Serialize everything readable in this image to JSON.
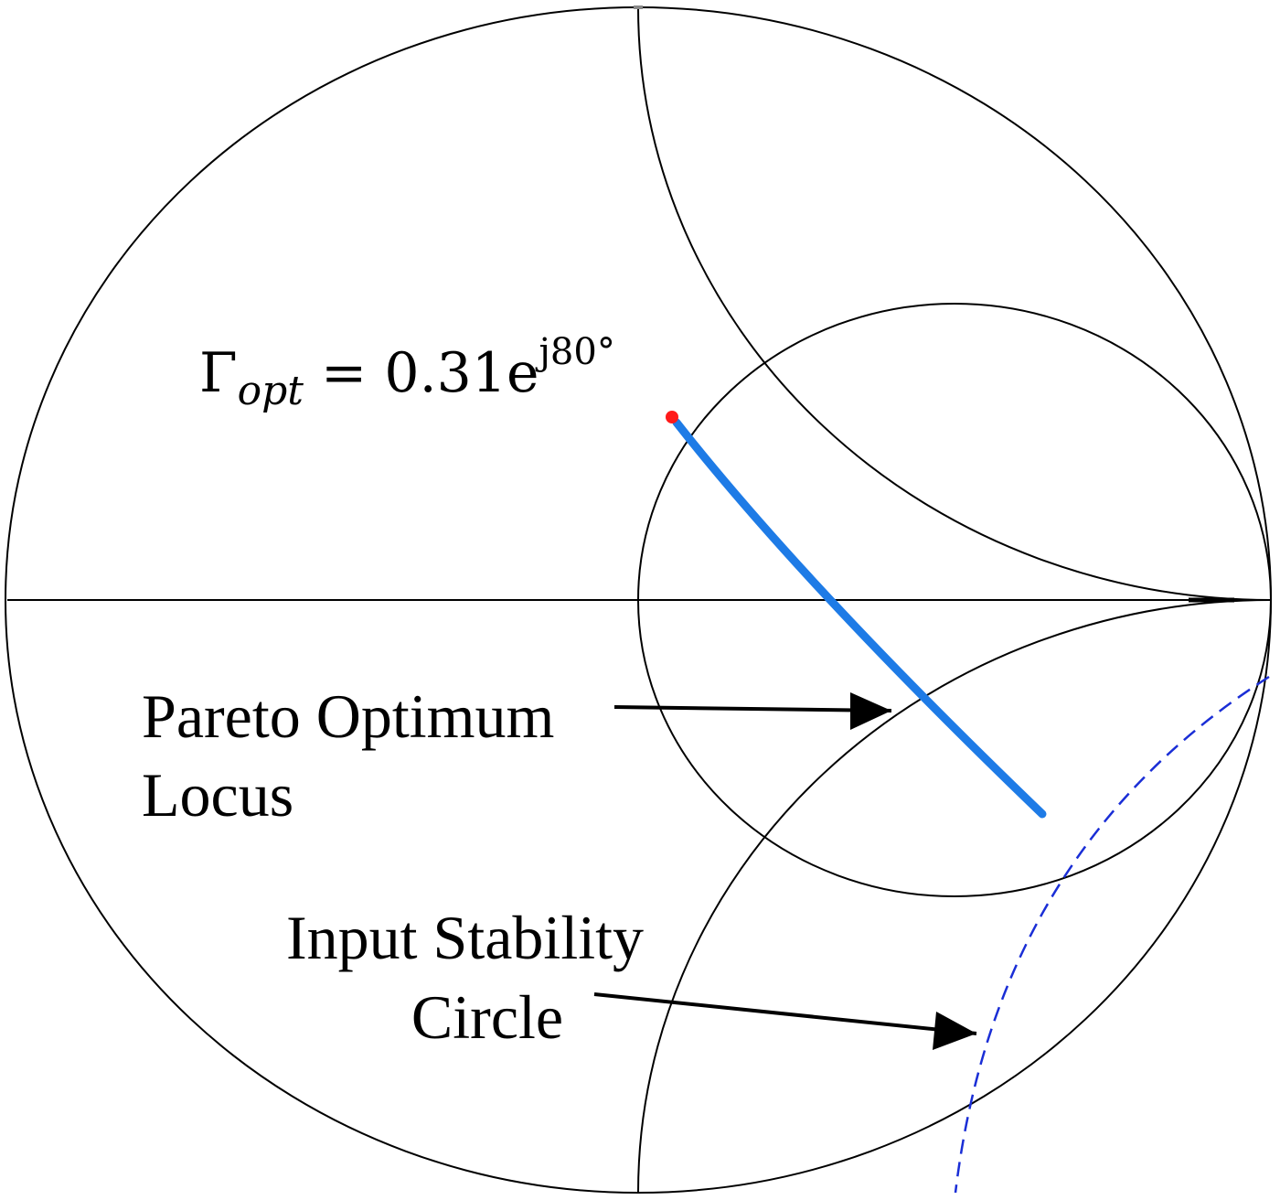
{
  "annotations": {
    "gamma_opt": {
      "symbol": "Γ",
      "subscript": "opt",
      "equals": " = 0.31e",
      "superscript": "j80°"
    },
    "pareto": [
      "Pareto Optimum",
      "Locus"
    ],
    "stability": [
      "Input Stability",
      "Circle"
    ]
  }
}
